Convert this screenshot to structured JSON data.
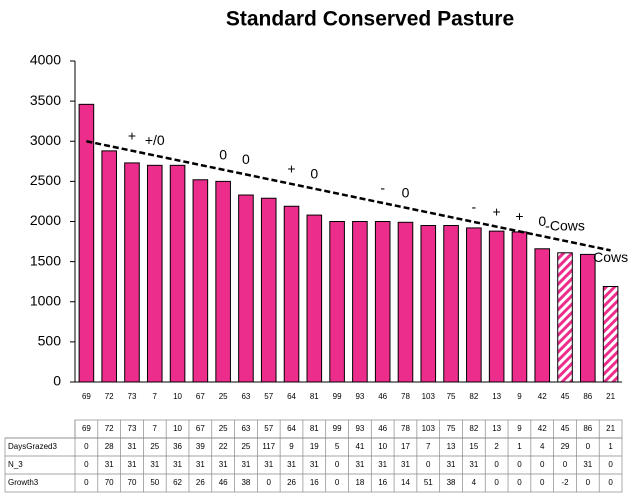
{
  "chart_data": {
    "type": "bar",
    "title": "Standard Conserved Pasture",
    "categories": [
      "69",
      "72",
      "73",
      "7",
      "10",
      "67",
      "25",
      "63",
      "57",
      "64",
      "81",
      "99",
      "93",
      "46",
      "78",
      "103",
      "75",
      "82",
      "13",
      "9",
      "42",
      "45",
      "86",
      "21"
    ],
    "values": [
      3460,
      2880,
      2730,
      2700,
      2700,
      2520,
      2500,
      2330,
      2290,
      2190,
      2080,
      2000,
      2000,
      2000,
      1990,
      1950,
      1950,
      1920,
      1880,
      1870,
      1660,
      1610,
      1590,
      1190
    ],
    "hatched": [
      false,
      false,
      false,
      false,
      false,
      false,
      false,
      false,
      false,
      false,
      false,
      false,
      false,
      false,
      false,
      false,
      false,
      false,
      false,
      false,
      false,
      true,
      false,
      true
    ],
    "color": "#ec2d8c",
    "ylim": [
      0,
      4000
    ],
    "yticks": [
      0,
      500,
      1000,
      1500,
      2000,
      2500,
      3000,
      3500,
      4000
    ],
    "trendline": [
      3000,
      1640
    ],
    "annotations": [
      {
        "text": "+",
        "index": 2
      },
      {
        "text": "+/0",
        "index": 3
      },
      {
        "text": "0",
        "index": 6
      },
      {
        "text": "0",
        "index": 7
      },
      {
        "text": "+",
        "index": 9
      },
      {
        "text": "0",
        "index": 10
      },
      {
        "text": "-",
        "index": 13
      },
      {
        "text": "0",
        "index": 14
      },
      {
        "text": "-",
        "index": 17
      },
      {
        "text": "+",
        "index": 18
      },
      {
        "text": "+",
        "index": 19
      },
      {
        "text": "0",
        "index": 20
      },
      {
        "text": "-Cows",
        "index": 21
      },
      {
        "text": "Cows",
        "index": 23
      }
    ],
    "table": {
      "rows": [
        {
          "label": "DaysGrazed3",
          "values": [
            0,
            28,
            31,
            25,
            36,
            39,
            22,
            25,
            117,
            9,
            19,
            5,
            41,
            10,
            17,
            7,
            13,
            15,
            2,
            1,
            4,
            29,
            0,
            1
          ]
        },
        {
          "label": "N_3",
          "values": [
            0,
            31,
            31,
            31,
            31,
            31,
            31,
            31,
            31,
            31,
            31,
            0,
            31,
            31,
            31,
            0,
            31,
            31,
            0,
            0,
            0,
            0,
            31,
            0
          ]
        },
        {
          "label": "Growth3",
          "values": [
            0,
            70,
            70,
            50,
            62,
            26,
            46,
            38,
            0,
            26,
            16,
            0,
            18,
            16,
            14,
            51,
            38,
            4,
            0,
            0,
            0,
            -2,
            0,
            0
          ]
        }
      ]
    }
  }
}
